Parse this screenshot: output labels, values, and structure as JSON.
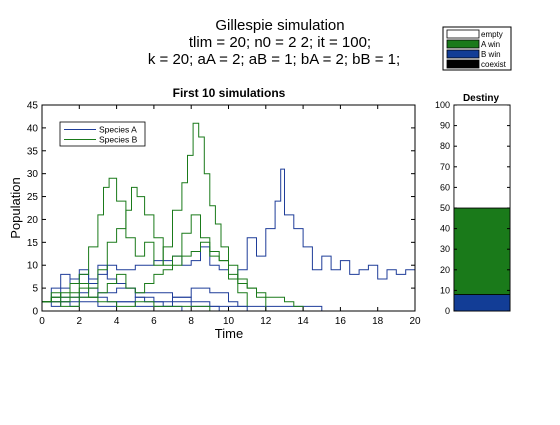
{
  "figure": {
    "title_lines": [
      "Gillespie simulation",
      "tlim = 20;  n0 = 2  2;  it = 100;",
      "k = 20;  aA = 2;  aB = 1;  bA = 2;  bB = 1;"
    ]
  },
  "chart_data": [
    {
      "type": "line",
      "title": "First 10 simulations",
      "xlabel": "Time",
      "ylabel": "Population",
      "xlim": [
        0,
        20
      ],
      "ylim": [
        0,
        45
      ],
      "xticks": [
        0,
        2,
        4,
        6,
        8,
        10,
        12,
        14,
        16,
        18,
        20
      ],
      "yticks": [
        0,
        5,
        10,
        15,
        20,
        25,
        30,
        35,
        40,
        45
      ],
      "legend_position": "top-left",
      "grid": false,
      "series": [
        {
          "name": "Species A",
          "color": "#1f3d99",
          "paths": [
            {
              "x": [
                0,
                0.5,
                1,
                1.5,
                2,
                2.5,
                3,
                3.5,
                4,
                5,
                6,
                7,
                7.5,
                8,
                8.5,
                9,
                9.5,
                10,
                10.5,
                11,
                11.5,
                12,
                12.5,
                12.8,
                13,
                13.5,
                14,
                14.5,
                15,
                15.5,
                16,
                16.5,
                17,
                17.5,
                18,
                18.5,
                19,
                19.5,
                20
              ],
              "y": [
                2,
                5,
                8,
                6,
                9,
                7,
                8,
                10,
                9,
                10,
                11,
                12,
                10,
                11,
                14,
                10,
                9,
                7,
                9,
                16,
                12,
                18,
                24,
                31,
                21,
                18,
                14,
                9,
                12,
                9,
                11,
                8,
                9,
                10,
                7,
                9,
                8,
                9,
                5
              ]
            },
            {
              "x": [
                0,
                0.5,
                1,
                1.5,
                2,
                2.5,
                3,
                3.5,
                4,
                4.5,
                5,
                5.5,
                6,
                6.5,
                7,
                7.5,
                8
              ],
              "y": [
                2,
                3,
                5,
                7,
                8,
                6,
                10,
                7,
                6,
                5,
                3,
                2,
                2,
                1,
                1,
                0,
                0
              ]
            },
            {
              "x": [
                0,
                1,
                2,
                2.5,
                3,
                3.5,
                4,
                5,
                6,
                7,
                8,
                9,
                10,
                10.5,
                11
              ],
              "y": [
                2,
                3,
                4,
                5,
                3,
                2,
                2,
                3,
                2,
                3,
                5,
                4,
                2,
                1,
                0
              ]
            },
            {
              "x": [
                0,
                1,
                2,
                3,
                4,
                5,
                6,
                7,
                8,
                9,
                9.5
              ],
              "y": [
                2,
                2,
                3,
                4,
                5,
                4,
                4,
                3,
                2,
                1,
                0
              ]
            },
            {
              "x": [
                0,
                0.5,
                1,
                1.5,
                2,
                3,
                4,
                5,
                6,
                7,
                8,
                9,
                10,
                11,
                12,
                13,
                14,
                15,
                16,
                17,
                18,
                19,
                20
              ],
              "y": [
                2,
                1,
                2,
                1,
                2,
                1,
                2,
                1,
                1,
                2,
                1,
                1,
                1,
                1,
                1,
                1,
                1,
                0,
                0,
                0,
                0,
                0,
                0
              ]
            }
          ]
        },
        {
          "name": "Species B",
          "color": "#1a7a1a",
          "paths": [
            {
              "x": [
                0,
                0.5,
                1,
                1.5,
                2,
                2.5,
                3,
                3.3,
                3.6,
                4,
                4.5,
                5,
                5.5,
                6,
                6.5,
                7,
                7.5,
                7.8,
                8.1,
                8.4,
                8.7,
                9,
                9.3,
                9.6,
                10,
                10.5,
                11,
                11.5,
                12
              ],
              "y": [
                2,
                4,
                3,
                6,
                8,
                14,
                21,
                27,
                29,
                24,
                16,
                12,
                15,
                10,
                14,
                22,
                28,
                34,
                41,
                38,
                30,
                23,
                19,
                14,
                10,
                7,
                5,
                3,
                0
              ]
            },
            {
              "x": [
                0,
                0.5,
                1,
                1.5,
                2,
                2.5,
                3,
                3.5,
                4,
                4.5,
                4.8,
                5.1,
                5.5,
                6,
                6.5,
                7,
                7.5,
                8,
                8.5,
                9,
                9.5,
                10,
                10.5,
                11
              ],
              "y": [
                2,
                3,
                4,
                3,
                6,
                5,
                9,
                15,
                18,
                22,
                27,
                25,
                21,
                16,
                10,
                12,
                17,
                21,
                16,
                13,
                11,
                7,
                4,
                1
              ]
            },
            {
              "x": [
                0,
                0.5,
                1,
                1.5,
                2,
                2.5,
                3,
                3.5,
                4,
                4.5,
                5,
                5.5,
                6,
                6.5,
                7,
                7.5,
                8,
                8.5,
                9,
                9.5,
                10,
                10.5,
                11,
                11.5,
                12,
                12.5,
                13,
                13.5,
                14
              ],
              "y": [
                2,
                3,
                2,
                4,
                5,
                3,
                4,
                6,
                8,
                5,
                4,
                6,
                8,
                9,
                10,
                12,
                13,
                15,
                12,
                11,
                8,
                6,
                5,
                4,
                3,
                3,
                2,
                1,
                0
              ]
            },
            {
              "x": [
                0,
                1,
                2,
                3,
                4,
                5,
                6,
                7,
                8,
                9,
                10
              ],
              "y": [
                2,
                1,
                3,
                2,
                1,
                2,
                1,
                1,
                1,
                0,
                0
              ]
            }
          ]
        }
      ]
    },
    {
      "type": "bar",
      "stacked": true,
      "title": "Destiny",
      "ylim": [
        0,
        100
      ],
      "yticks": [
        0,
        10,
        20,
        30,
        40,
        50,
        60,
        70,
        80,
        90,
        100
      ],
      "legend_position": "top",
      "series": [
        {
          "name": "coexist",
          "value": 0,
          "color": "#000000"
        },
        {
          "name": "B win",
          "value": 8,
          "color": "#123d96"
        },
        {
          "name": "A win",
          "value": 42,
          "color": "#1a7a1a"
        },
        {
          "name": "empty",
          "value": 50,
          "color": "#ffffff"
        }
      ]
    }
  ]
}
